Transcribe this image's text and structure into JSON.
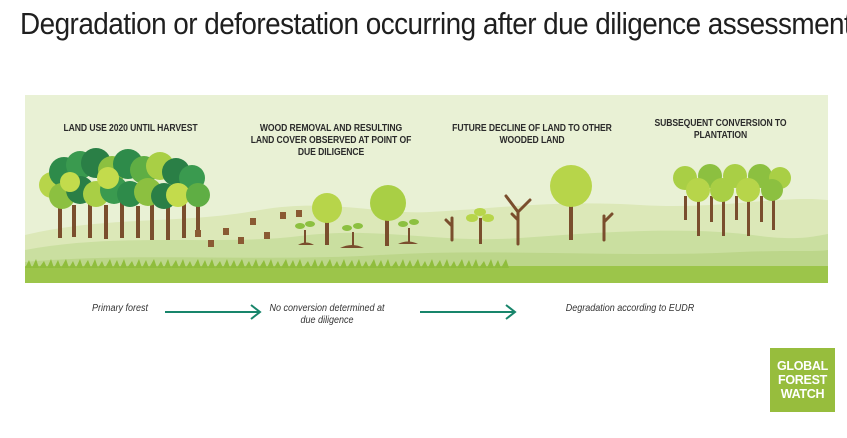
{
  "title": "Degradation or deforestation occurring after due diligence assessment",
  "panels": [
    {
      "label": "LAND USE 2020 UNTIL HARVEST"
    },
    {
      "label": "WOOD REMOVAL AND RESULTING LAND COVER OBSERVED AT POINT OF DUE DILIGENCE"
    },
    {
      "label": "FUTURE DECLINE OF LAND TO OTHER WOODED LAND"
    },
    {
      "label": "SUBSEQUENT CONVERSION TO PLANTATION"
    }
  ],
  "captions": [
    {
      "text": "Primary forest"
    },
    {
      "text": "No conversion determined at due diligence"
    },
    {
      "text": "Degradation according to EUDR"
    }
  ],
  "logo": {
    "line1": "GLOBAL",
    "line2": "FOREST",
    "line3": "WATCH"
  },
  "colors": {
    "sky": "#e9f1d5",
    "ground_light": "#d5e4aa",
    "ground_mid": "#c1d98a",
    "grass": "#9cc54a",
    "arrow": "#18856b",
    "trunk": "#7a4e2d",
    "logo_bg": "#97bd3d"
  },
  "icons": [
    "arrow-right-icon",
    "arrow-right-icon"
  ]
}
